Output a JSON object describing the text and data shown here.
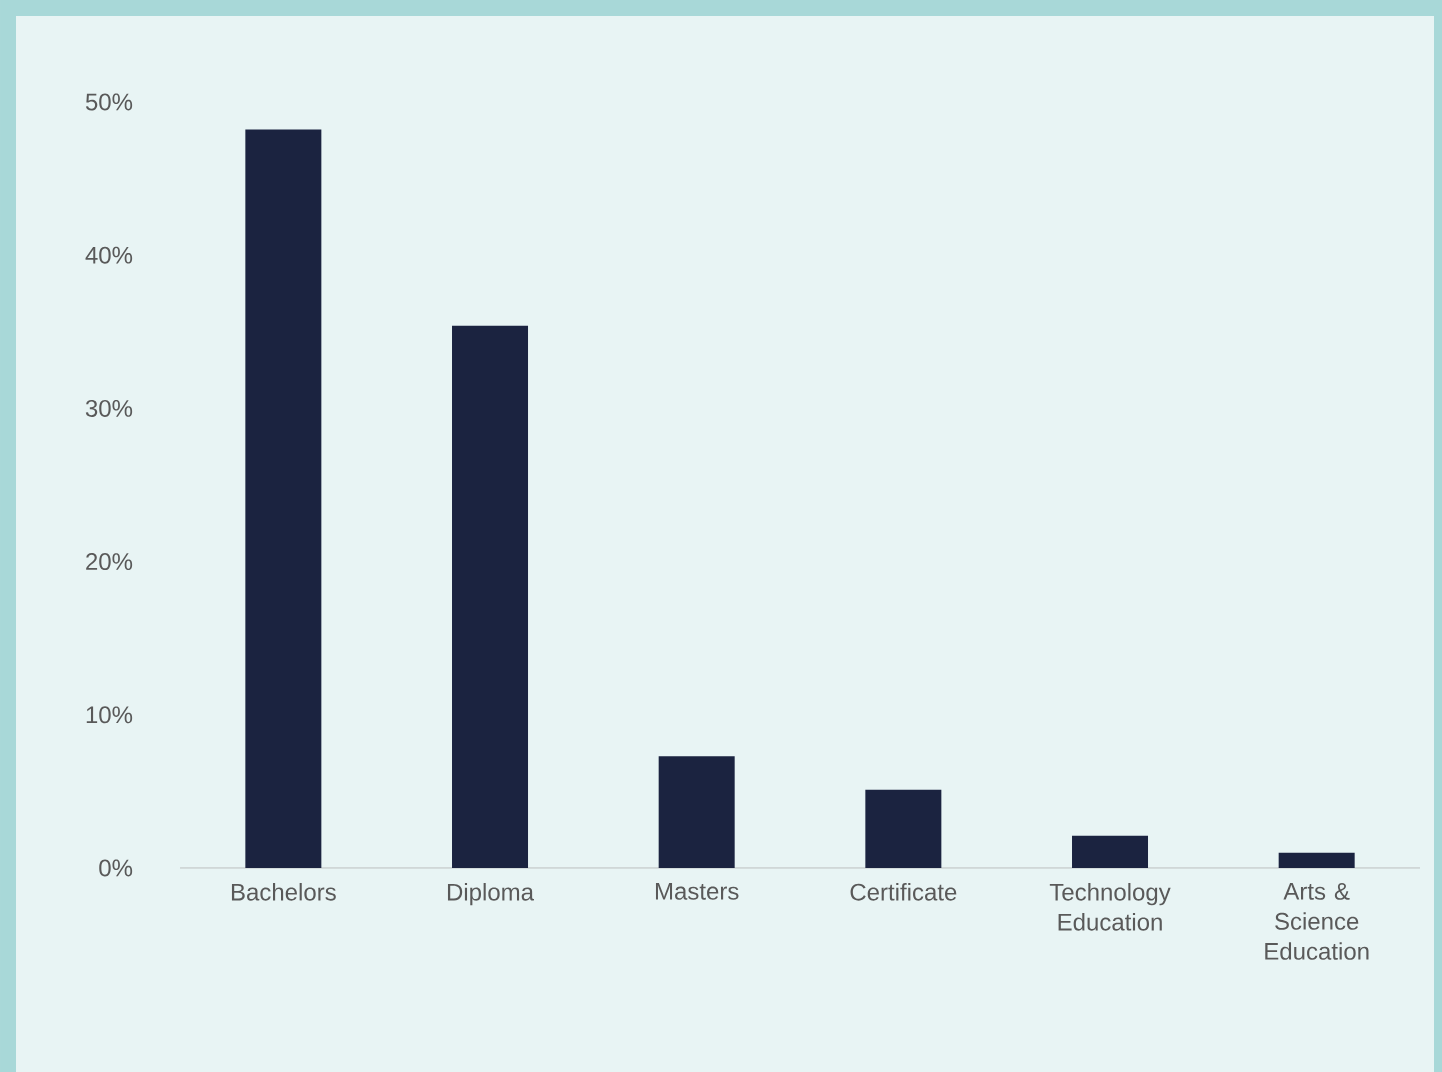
{
  "chart_data": {
    "type": "bar",
    "categories": [
      "Bachelors",
      "Diploma",
      "Masters",
      "Certificate",
      "Technology Education",
      "Arts & Science Education"
    ],
    "values": [
      48.2,
      35.4,
      7.3,
      5.1,
      2.1,
      1.0
    ],
    "color": "#1b2340",
    "ylim": [
      0,
      50
    ],
    "yticks": [
      {
        "value": 0,
        "label": "0%"
      },
      {
        "value": 10,
        "label": "10%"
      },
      {
        "value": 20,
        "label": "20%"
      },
      {
        "value": 30,
        "label": "30%"
      },
      {
        "value": 40,
        "label": "40%"
      },
      {
        "value": 50,
        "label": "50%"
      }
    ],
    "grid": false
  }
}
